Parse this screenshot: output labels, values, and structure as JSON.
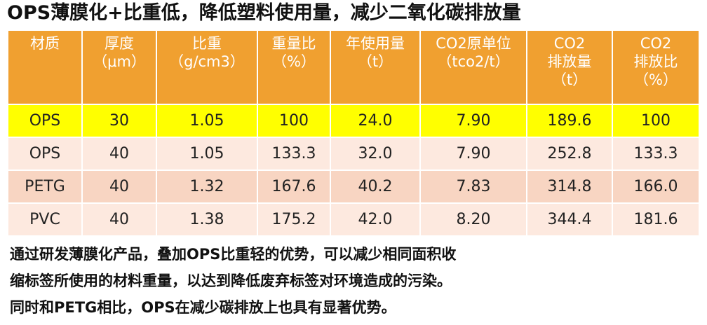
{
  "title": "OPS薄膜化+比重低，降低塑料使用量，减少二氧化碳排放量",
  "table": {
    "headers": [
      [
        "材质"
      ],
      [
        "厚度",
        "（μm）"
      ],
      [
        "比重",
        "（g/cm3）"
      ],
      [
        "重量比",
        "（%）"
      ],
      [
        "年使用量",
        "（t）"
      ],
      [
        "CO2原单位",
        "（tco2/t）"
      ],
      [
        "CO2",
        "排放量",
        "（t）"
      ],
      [
        "CO2",
        "排放比",
        "（%）"
      ]
    ],
    "rows": [
      [
        "OPS",
        "30",
        "1.05",
        "100",
        "24.0",
        "7.90",
        "189.6",
        "100"
      ],
      [
        "OPS",
        "40",
        "1.05",
        "133.3",
        "32.0",
        "7.90",
        "252.8",
        "133.3"
      ],
      [
        "PETG",
        "40",
        "1.32",
        "167.6",
        "40.2",
        "7.83",
        "314.8",
        "166.0"
      ],
      [
        "PVC",
        "40",
        "1.38",
        "175.2",
        "42.0",
        "8.20",
        "344.4",
        "181.6"
      ]
    ],
    "colors": {
      "header": "#f0a030",
      "highlight_row": "#ffff00",
      "row_light": "#fde9df",
      "row_dark": "#f8d5c2"
    }
  },
  "description": [
    "通过研发薄膜化产品，叠加OPS比重轻的优势，可以减少相同面积收",
    "缩标签所使用的材料重量，以达到降低废弃标签对环境造成的污染。",
    "同时和PETG相比，OPS在减少碳排放上也具有显著优势。"
  ]
}
